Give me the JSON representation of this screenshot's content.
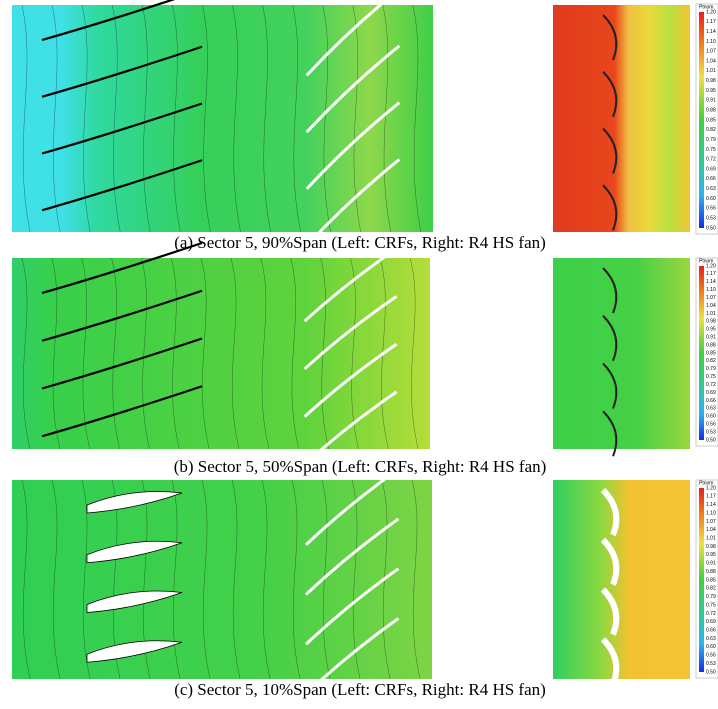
{
  "panels": [
    {
      "caption": "(a)   Sector 5, 90%Span (Left: CRFs, Right: R4 HS fan)",
      "colorbar": {
        "title": "Ptnom",
        "labels": [
          "1.20",
          "1.17",
          "1.14",
          "1.10",
          "1.07",
          "1.04",
          "1.01",
          "0.98",
          "0.95",
          "0.91",
          "0.88",
          "0.85",
          "0.82",
          "0.79",
          "0.75",
          "0.72",
          "0.69",
          "0.66",
          "0.63",
          "0.60",
          "0.56",
          "0.53",
          "0.50"
        ]
      }
    },
    {
      "caption": "(b)   Sector 5, 50%Span (Left: CRFs, Right: R4 HS fan)",
      "colorbar": {
        "title": "Ptnom",
        "labels": [
          "1.20",
          "1.17",
          "1.14",
          "1.10",
          "1.07",
          "1.04",
          "1.01",
          "0.98",
          "0.95",
          "0.91",
          "0.88",
          "0.85",
          "0.82",
          "0.79",
          "0.75",
          "0.72",
          "0.69",
          "0.66",
          "0.63",
          "0.60",
          "0.56",
          "0.53",
          "0.50"
        ]
      }
    },
    {
      "caption": "(c)   Sector 5, 10%Span (Left: CRFs, Right: R4 HS fan)",
      "colorbar": {
        "title": "Ptnom",
        "labels": [
          "1.20",
          "1.17",
          "1.14",
          "1.10",
          "1.07",
          "1.04",
          "1.01",
          "0.98",
          "0.95",
          "0.91",
          "0.88",
          "0.85",
          "0.82",
          "0.79",
          "0.75",
          "0.72",
          "0.69",
          "0.66",
          "0.63",
          "0.60",
          "0.56",
          "0.53",
          "0.50"
        ]
      }
    }
  ]
}
